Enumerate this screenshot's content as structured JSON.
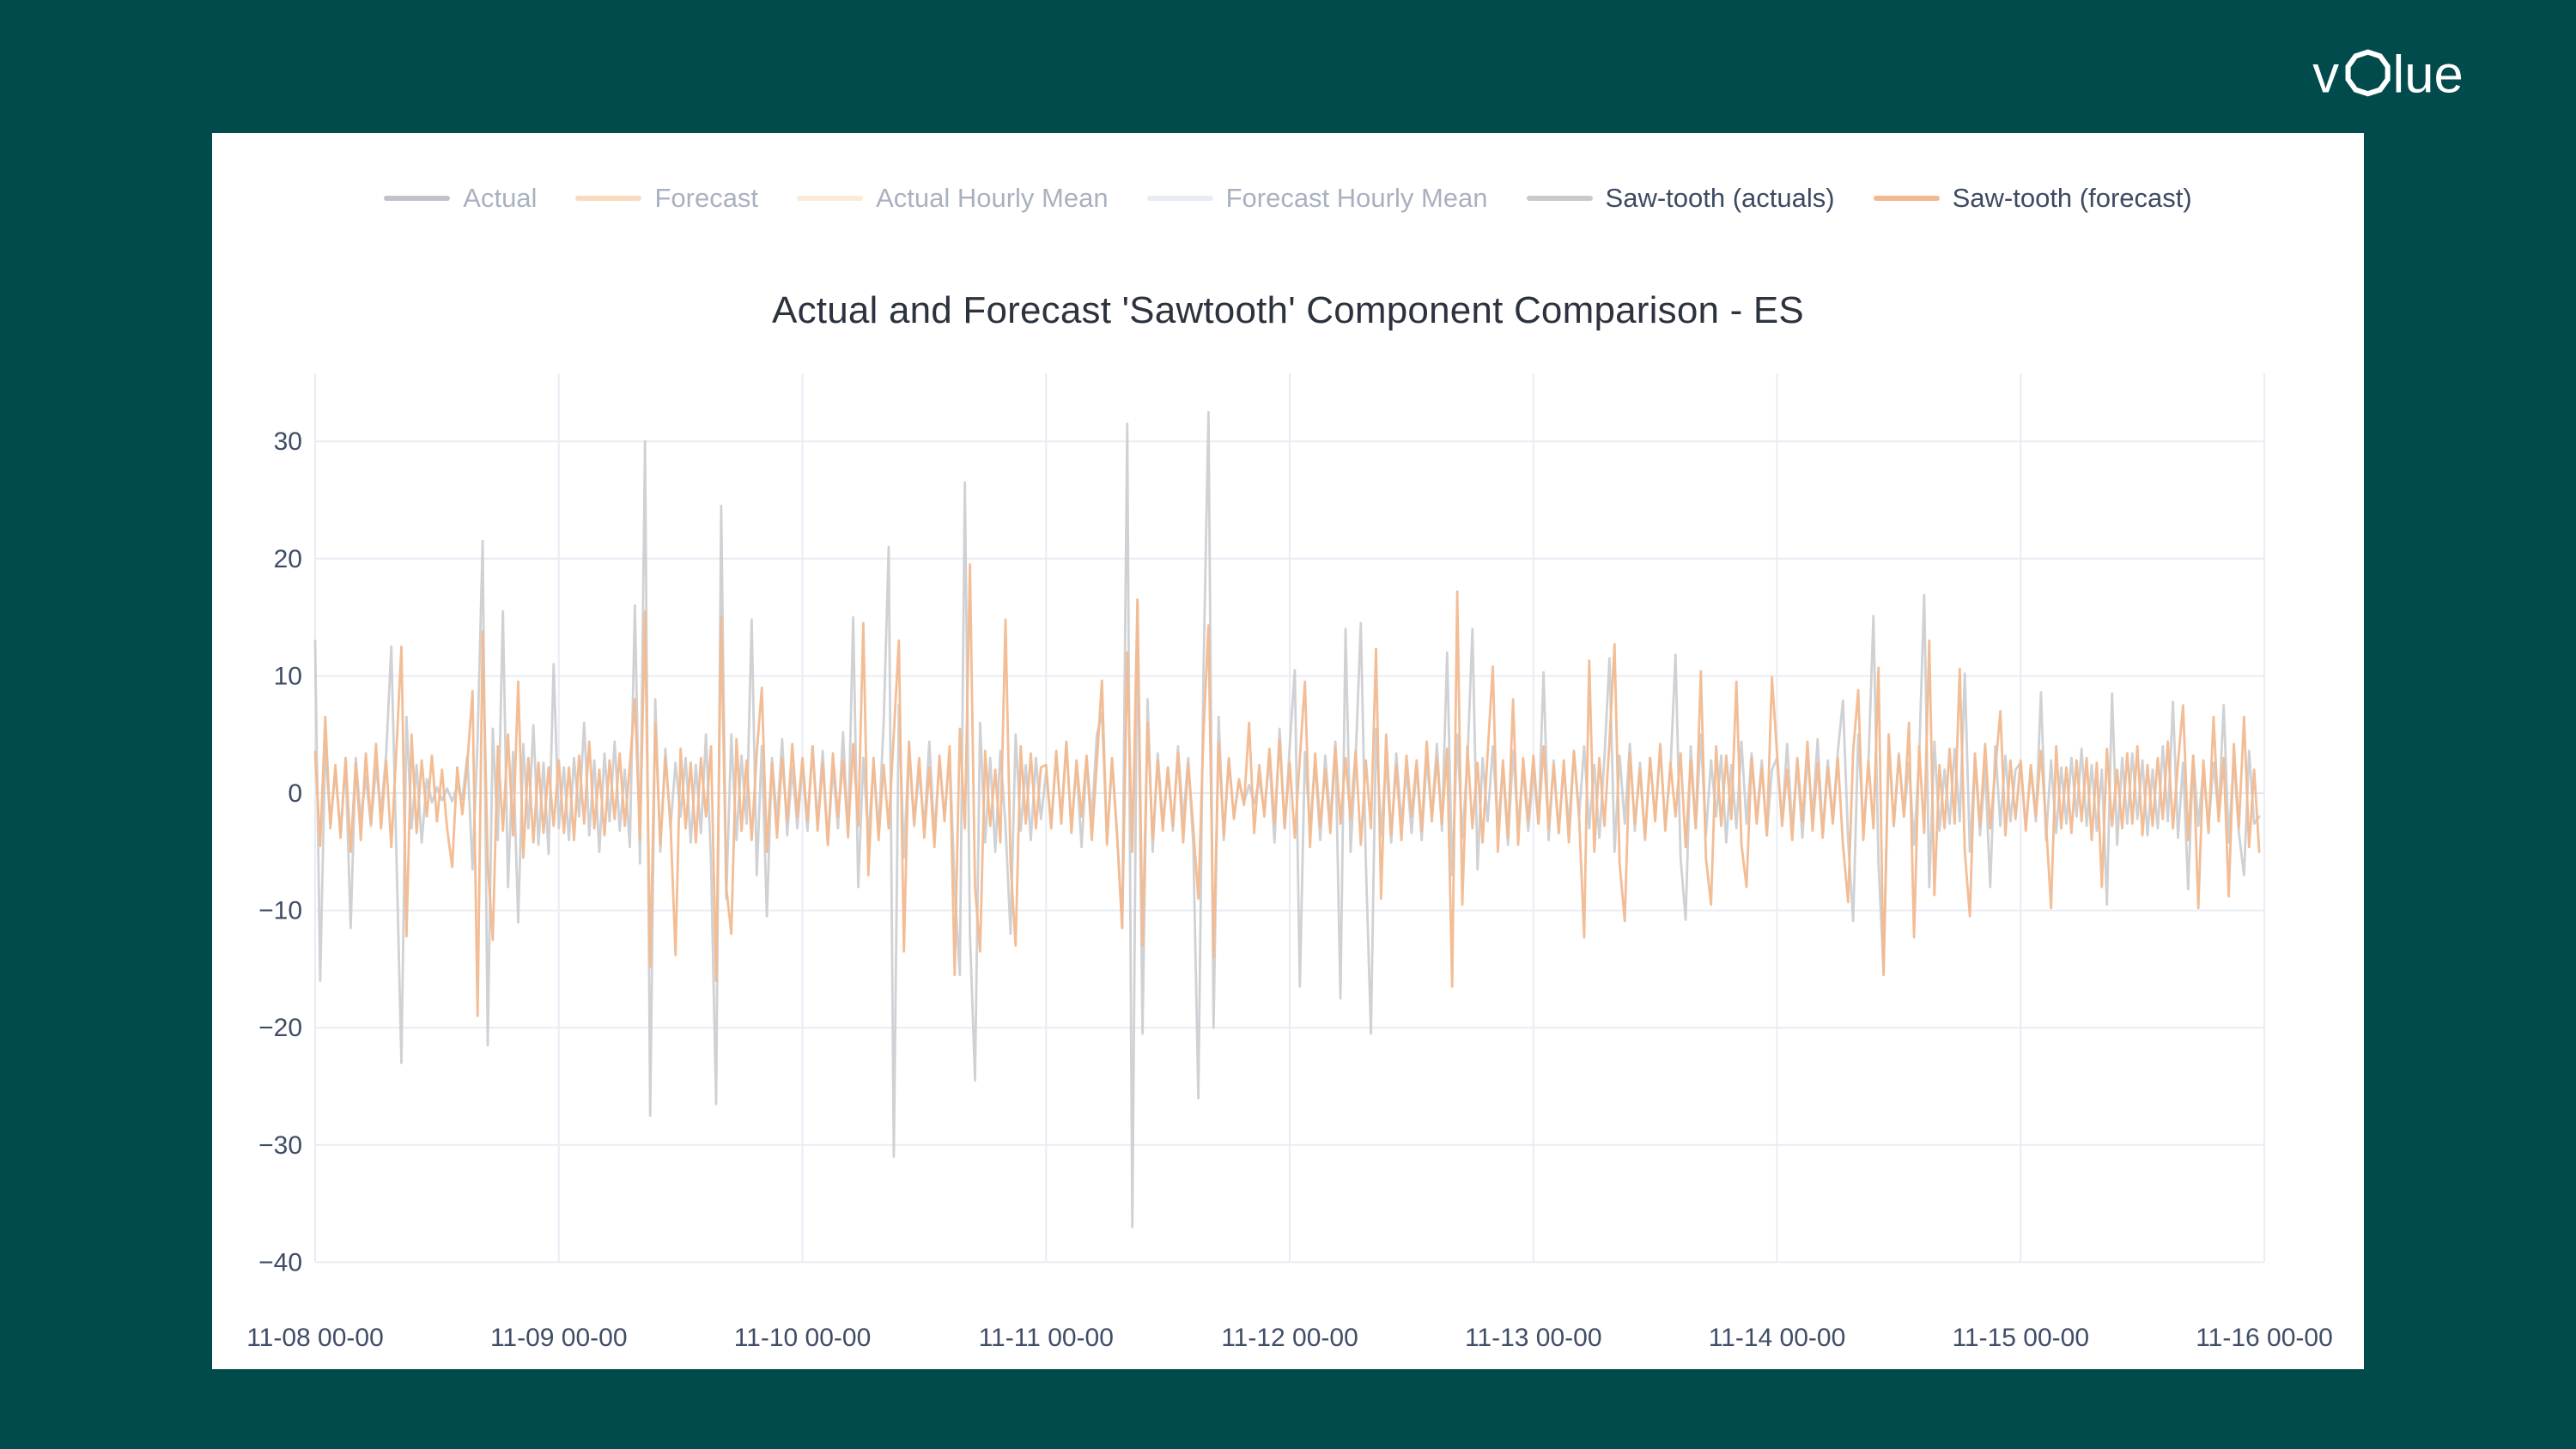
{
  "colors": {
    "page_bg": "#014b4c",
    "card_bg": "#ffffff",
    "grid": "#e9ecf4",
    "zero_line": "#e2e6f0",
    "tick_text": "#3f4d66",
    "title_text": "#2c333e",
    "legend_text_active": "#3d4a61",
    "legend_text_dim": "#a9b1c0",
    "logo_text": "#ffffff"
  },
  "logo": {
    "alt": "volue",
    "left": "v",
    "right": "lue"
  },
  "chart_data": {
    "type": "line",
    "title": "Actual and Forecast 'Sawtooth' Component Comparison - ES",
    "x_axis": {
      "tick_labels": [
        "11-08 00-00",
        "11-09 00-00",
        "11-10 00-00",
        "11-11 00-00",
        "11-12 00-00",
        "11-13 00-00",
        "11-14 00-00",
        "11-15 00-00",
        "11-16 00-00"
      ],
      "start_hour": 0,
      "end_hour": 192,
      "sample_interval_hours": 0.5
    },
    "y_axis": {
      "ticks": [
        30,
        20,
        10,
        0,
        -10,
        -20,
        -30,
        -40
      ],
      "range": [
        -40,
        35
      ]
    },
    "grid": true,
    "legend_position": "top-center",
    "legend": [
      {
        "label": "Actual",
        "color": "#a9adb6",
        "dimmed": true
      },
      {
        "label": "Forecast",
        "color": "#f8cda8",
        "dimmed": true
      },
      {
        "label": "Actual Hourly Mean",
        "color": "#fae3cb",
        "dimmed": true
      },
      {
        "label": "Forecast Hourly Mean",
        "color": "#dfe5ee",
        "dimmed": true
      },
      {
        "label": "Saw-tooth (actuals)",
        "color": "#c9c9c9",
        "dimmed": false
      },
      {
        "label": "Saw-tooth (forecast)",
        "color": "#f3b98e",
        "dimmed": false
      }
    ],
    "series": [
      {
        "name": "Saw-tooth (actuals)",
        "color": "#c9cbce",
        "opacity": 0.88,
        "values": [
          13,
          -16,
          4.2,
          -2.6,
          1.8,
          -3.4,
          2.6,
          -11.5,
          3,
          -2.2,
          1.4,
          -2.8,
          2.2,
          -1.6,
          3.4,
          12.5,
          -5,
          -23,
          6.5,
          -3,
          2.4,
          -4.2,
          1.2,
          -0.8,
          0.5,
          -0.6,
          0.4,
          -0.7,
          0.6,
          -0.5,
          3.2,
          -6.5,
          4.5,
          21.5,
          -21.5,
          5.5,
          -4,
          15.5,
          -8,
          3.5,
          -11,
          4.2,
          -3,
          5.8,
          -4.4,
          2.6,
          -5.2,
          11,
          -3,
          2.2,
          -4,
          3,
          -2,
          6,
          -3.6,
          2.8,
          -5,
          3.4,
          -2.4,
          4.4,
          -3.2,
          2,
          -4.6,
          16,
          -6,
          30,
          -27.5,
          8,
          -5,
          3.8,
          -3,
          2.6,
          -2,
          3,
          -4.2,
          2.4,
          -3.4,
          5,
          -6,
          -26.5,
          24.5,
          -9,
          5,
          -4,
          3.2,
          -2.6,
          14.8,
          -7,
          4,
          -10.5,
          3,
          -2.4,
          4.6,
          -3.6,
          2.2,
          -3,
          2.4,
          -3.2,
          4,
          -2.6,
          3.6,
          -4.4,
          2.2,
          -3,
          5.2,
          -3.8,
          15,
          -8,
          3,
          -4,
          2.6,
          -3.4,
          6,
          21,
          -31,
          7.5,
          -5.5,
          4,
          -2.8,
          2,
          -3,
          4.4,
          -3.6,
          2.8,
          -2.2,
          3.4,
          -8,
          -15.5,
          26.5,
          -12,
          -24.5,
          6,
          -4.2,
          3,
          -5,
          3.6,
          -2.8,
          -12,
          5,
          -3.2,
          2.4,
          -4,
          3,
          -2.2,
          1.8,
          -2.8,
          3.2,
          -2,
          4.2,
          -3,
          2.4,
          -4.6,
          3,
          -2.2,
          5,
          6.8,
          -4,
          2.6,
          -3.6,
          -11.5,
          31.5,
          -37,
          16.5,
          -20.5,
          8,
          -5,
          3.4,
          -2.6,
          2,
          -3.2,
          4,
          -2.4,
          3,
          -4.4,
          -26,
          10,
          32.5,
          -20,
          6.5,
          -4,
          2.8,
          -2,
          1,
          -0.8,
          0.7,
          -0.9,
          1.2,
          -1.5,
          3,
          -4.2,
          5.5,
          -3,
          4,
          10.5,
          -16.5,
          3.5,
          -3,
          2.6,
          -4,
          3.2,
          -2.4,
          4.4,
          -17.5,
          14,
          -5,
          3,
          14.5,
          -6,
          -20.5,
          5.5,
          -3.6,
          2.8,
          -4.2,
          3.4,
          -2.6,
          2,
          -3.4,
          2.4,
          -4,
          3,
          -2,
          4.2,
          -3.2,
          12,
          -7,
          5,
          -3.8,
          2.6,
          14,
          -6.5,
          3,
          -2.4,
          4,
          -3,
          2.2,
          -4.4,
          3.6,
          -2.8,
          2,
          -3.2,
          2,
          -2.6,
          10.3,
          -4,
          2.8,
          -3.4,
          2.2,
          -2.8,
          3.6,
          -2,
          4,
          -3,
          2.4,
          -3.8,
          3,
          11.5,
          -5,
          3.2,
          -2.6,
          4.2,
          -3.2,
          2.6,
          -4,
          3,
          -2.2,
          3.8,
          -2.8,
          2,
          11.8,
          -5.5,
          -10.8,
          4,
          -3,
          5,
          -3.6,
          2.8,
          -2,
          3.2,
          -4.2,
          2.4,
          -3,
          4.4,
          -2.6,
          3.4,
          -2.2,
          2.8,
          -3.6,
          2,
          3,
          -2.4,
          4.2,
          -3,
          2.6,
          -3.8,
          3.2,
          -2,
          4.6,
          -3.4,
          2.8,
          -2.2,
          3.6,
          7.9,
          -4,
          -10.9,
          5,
          -3,
          2.4,
          15.1,
          -6,
          -15.3,
          4,
          -2.8,
          3.4,
          -2,
          2.6,
          -4.4,
          3,
          16.9,
          -8,
          4.4,
          -3.2,
          2,
          -2.6,
          3.8,
          -2.4,
          10.2,
          -5,
          3,
          -3.6,
          2.2,
          -8,
          4,
          -2.8,
          3.2,
          -2.4,
          2,
          2.6,
          -3,
          2,
          -2.4,
          8.6,
          -4,
          2.8,
          -3.4,
          2.2,
          -2.6,
          3,
          -2,
          3.8,
          -2.8,
          2.4,
          -3.2,
          2,
          -9.5,
          8.5,
          -4.4,
          3,
          -2.6,
          3.4,
          -2.2,
          2.8,
          -3.6,
          2,
          -3,
          4,
          -2.4,
          7.8,
          -3.8,
          2.6,
          -8.2,
          3.2,
          -2.8,
          2.2,
          -3,
          2.6,
          -2,
          7.5,
          -4.2,
          3,
          -3.4,
          -7,
          3.6,
          -2.6,
          -2
        ]
      },
      {
        "name": "Saw-tooth (forecast)",
        "color": "#f2b98f",
        "opacity": 0.95,
        "values": [
          3.5,
          -4.5,
          6.5,
          -3,
          2.4,
          -3.8,
          3,
          -5,
          2.6,
          -4,
          3.4,
          -2.6,
          4.2,
          -3,
          2.8,
          -4.6,
          3.6,
          12.5,
          -12.2,
          5,
          -3.4,
          2.8,
          -2,
          3.2,
          -2.4,
          2,
          -3,
          -6.3,
          2.2,
          -1.8,
          2.6,
          8.7,
          -19,
          13.8,
          -6,
          -12.5,
          4,
          -3.2,
          5,
          -3.6,
          9.5,
          -5.5,
          3,
          -4.2,
          2.6,
          -3.4,
          2.2,
          -2.8,
          2.8,
          -3.4,
          2.2,
          -4,
          3.2,
          -2.6,
          4.4,
          -3,
          2,
          -3.6,
          2.8,
          -2.2,
          3.4,
          -2.8,
          2.4,
          8,
          -4,
          15.5,
          -14.8,
          6,
          -4.4,
          3,
          -2.4,
          -13.8,
          3.8,
          -3,
          2.6,
          -4.2,
          3,
          -2,
          4,
          -16,
          15,
          -8,
          -12,
          4.6,
          -3.2,
          2.8,
          -4,
          3.4,
          9,
          -5,
          2.6,
          -3.8,
          3,
          -2.4,
          4.2,
          -2,
          3,
          -2.4,
          4,
          -3.2,
          2.6,
          -4.4,
          3.4,
          -2,
          2.8,
          -3.6,
          4.2,
          -2.8,
          14.5,
          -7,
          3,
          -4,
          2.4,
          -3,
          5,
          13,
          -13.5,
          4.4,
          -2.6,
          3,
          -3.8,
          2.2,
          -4.6,
          3.2,
          -2.4,
          4,
          -15.5,
          5.5,
          -3,
          19.5,
          -8,
          -13.5,
          3.6,
          -2.8,
          2,
          -4.2,
          14.8,
          -6,
          -13,
          4,
          -2.6,
          3.4,
          -3,
          2.2,
          2.4,
          -3,
          3.6,
          -2.6,
          4.4,
          -3.4,
          2.8,
          -2,
          3.2,
          -4,
          2.6,
          9.6,
          -4.4,
          3,
          -3.6,
          -11.5,
          12,
          -5,
          16.5,
          -13,
          6,
          -4,
          2.8,
          -3.2,
          2.2,
          -2.8,
          3.4,
          -4.2,
          2.6,
          -3,
          -9,
          5,
          14.3,
          -14,
          4.4,
          -3.6,
          3,
          -2.2,
          1.2,
          -1,
          6,
          -3.4,
          2.4,
          -2,
          3.8,
          -2.6,
          4.6,
          -3,
          2.6,
          -3.8,
          3,
          9.5,
          -4.6,
          3.4,
          -2.8,
          2,
          -3.4,
          4,
          -2.6,
          3,
          -2.2,
          3.6,
          -4.4,
          2.8,
          -3,
          12.3,
          -9,
          5,
          -3.6,
          2.4,
          -4,
          3.2,
          -2,
          2.8,
          -3.2,
          4.4,
          -2.4,
          3,
          -2.6,
          3.8,
          -16.5,
          17.2,
          -9.5,
          4,
          -3,
          2.6,
          -4.2,
          3.4,
          10.8,
          -5,
          2.8,
          -3.8,
          8,
          -4.4,
          3,
          -2.4,
          3.2,
          -2.6,
          4,
          -3,
          2.4,
          -3.4,
          2.8,
          -4.2,
          3.6,
          -2,
          -12.3,
          11.3,
          -5,
          3,
          -2.8,
          4.4,
          12.7,
          -6,
          -10.9,
          3.4,
          -2.6,
          2,
          -3.8,
          3,
          -2.4,
          4.2,
          -3.2,
          2.6,
          -2,
          3.4,
          -4.6,
          2.8,
          -3,
          10.4,
          -5.5,
          -9.5,
          4,
          -2.8,
          3.2,
          -2.2,
          9.5,
          -4.4,
          -8,
          3,
          -2.6,
          2.2,
          -3.6,
          9.9,
          3.4,
          -2.8,
          2,
          -4,
          3,
          -2.4,
          4.4,
          -3.2,
          2.6,
          -3.8,
          2.2,
          -2.6,
          3,
          -4.4,
          -9.3,
          3.6,
          8.8,
          -4,
          2.8,
          -3,
          10.7,
          -15.5,
          5,
          -2.8,
          3.2,
          -2,
          6,
          -12.3,
          4,
          -3.4,
          13,
          -8.7,
          2.4,
          -3,
          3.8,
          -2.6,
          10.6,
          -5,
          -10.5,
          3.4,
          -2.8,
          4.2,
          -3,
          2,
          7,
          -3.6,
          2.8,
          -2.2,
          2.8,
          -3.2,
          2.4,
          -2,
          3.6,
          -2.6,
          -9.8,
          4,
          -3,
          2.2,
          -3.4,
          2.8,
          -2.4,
          3,
          -4,
          2.6,
          -8,
          3.8,
          -2.8,
          2,
          -3,
          3.4,
          -2.6,
          4,
          -3.6,
          2.4,
          -2.8,
          3,
          -2.2,
          4.4,
          -3,
          2.6,
          7.5,
          -4,
          3.2,
          -9.8,
          2.8,
          -3.4,
          6.5,
          -2.4,
          3,
          -8.8,
          4.2,
          -3,
          6.5,
          -4.6,
          2,
          -5
        ]
      }
    ]
  }
}
